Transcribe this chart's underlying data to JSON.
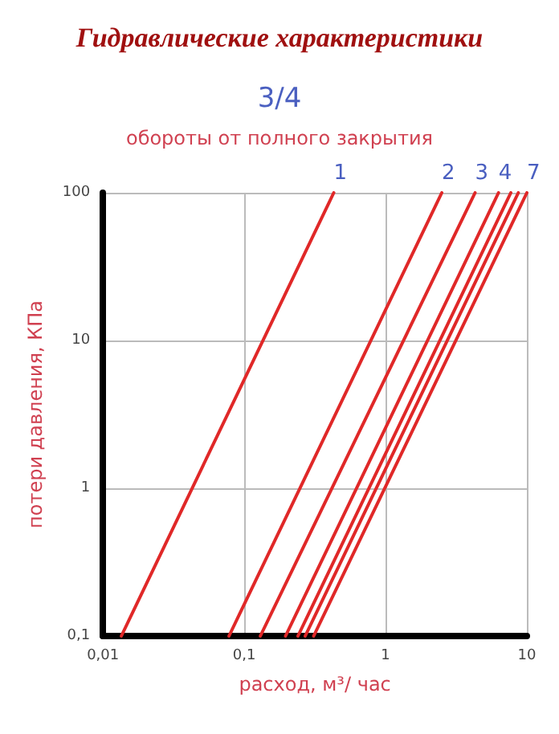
{
  "chart_data": {
    "type": "line",
    "title": "Гидравлические характеристики",
    "subtitle": "3/4",
    "annotations": [
      "обороты от полного закрытия"
    ],
    "xlabel": "расход, м³/ час",
    "ylabel": "потери давления, КПа",
    "log": "xy",
    "grid": true,
    "legend": false,
    "marker": "none",
    "line_style": "solid",
    "xlim": [
      0.01,
      10
    ],
    "ylim": [
      0.1,
      100
    ],
    "xticks": [
      {
        "value": 0.01,
        "label": "0,01"
      },
      {
        "value": 0.1,
        "label": "0,1"
      },
      1,
      10
    ],
    "yticks": [
      {
        "value": 0.1,
        "label": "0,1"
      },
      1,
      10,
      100
    ],
    "series": [
      {
        "name": "1",
        "color": "#e02828",
        "x": [
          0.0135,
          0.43
        ],
        "values": [
          0.1,
          100
        ]
      },
      {
        "name": "2",
        "color": "#e02828",
        "x": [
          0.078,
          2.5
        ],
        "values": [
          0.1,
          100
        ]
      },
      {
        "name": "3",
        "color": "#e02828",
        "x": [
          0.13,
          4.3
        ],
        "values": [
          0.1,
          100
        ]
      },
      {
        "name": "4",
        "color": "#e02828",
        "x": [
          0.196,
          6.3
        ],
        "values": [
          0.1,
          100
        ]
      },
      {
        "color": "#e02828",
        "x": [
          0.24,
          7.7
        ],
        "values": [
          0.1,
          100
        ]
      },
      {
        "color": "#e02828",
        "x": [
          0.27,
          8.7
        ],
        "values": [
          0.1,
          100
        ]
      },
      {
        "name": "7",
        "color": "#e02828",
        "x": [
          0.31,
          10
        ],
        "values": [
          0.1,
          100
        ]
      }
    ]
  }
}
